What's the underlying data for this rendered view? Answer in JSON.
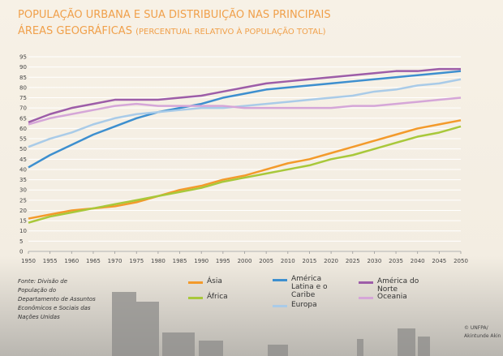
{
  "chart_data": {
    "type": "line",
    "title_lines": [
      "POPULAÇÃO URBANA E SUA DISTRIBUIÇÃO NAS PRINCIPAIS",
      "ÁREAS GEOGRÁFICAS"
    ],
    "subtitle": "(PERCENTUAL RELATIVO À POPULAÇÃO TOTAL)",
    "x": [
      1950,
      1955,
      1960,
      1965,
      1970,
      1975,
      1980,
      1985,
      1990,
      1995,
      2000,
      2005,
      2010,
      2015,
      2020,
      2025,
      2030,
      2035,
      2040,
      2045,
      2050
    ],
    "xlim": [
      1950,
      2050
    ],
    "xticks": [
      1950,
      1955,
      1960,
      1965,
      1970,
      1975,
      1980,
      1985,
      1990,
      1995,
      2000,
      2005,
      2010,
      2015,
      2020,
      2025,
      2030,
      2035,
      2040,
      2045,
      2050
    ],
    "ylim": [
      0,
      95
    ],
    "yticks": [
      0,
      5,
      10,
      15,
      20,
      25,
      30,
      35,
      40,
      45,
      50,
      55,
      60,
      65,
      70,
      75,
      80,
      85,
      90,
      95
    ],
    "grid": true,
    "series": [
      {
        "name": "Ásia",
        "color": "#f39a2b",
        "values": [
          16,
          18,
          20,
          21,
          22,
          24,
          27,
          30,
          32,
          35,
          37,
          40,
          43,
          45,
          48,
          51,
          54,
          57,
          60,
          62,
          64
        ]
      },
      {
        "name": "África",
        "color": "#a8c83a",
        "values": [
          14,
          17,
          19,
          21,
          23,
          25,
          27,
          29,
          31,
          34,
          36,
          38,
          40,
          42,
          45,
          47,
          50,
          53,
          56,
          58,
          61
        ]
      },
      {
        "name": "América Latina e o Caribe",
        "color": "#3d8fcf",
        "values": [
          41,
          47,
          52,
          57,
          61,
          65,
          68,
          70,
          72,
          75,
          77,
          79,
          80,
          81,
          82,
          83,
          84,
          85,
          86,
          87,
          88
        ]
      },
      {
        "name": "Europa",
        "color": "#a9cbe8",
        "values": [
          51,
          55,
          58,
          62,
          65,
          67,
          68,
          69,
          70,
          70,
          71,
          72,
          73,
          74,
          75,
          76,
          78,
          79,
          81,
          82,
          84
        ]
      },
      {
        "name": "América do Norte",
        "color": "#9d5da8",
        "values": [
          63,
          67,
          70,
          72,
          74,
          74,
          74,
          75,
          76,
          78,
          80,
          82,
          83,
          84,
          85,
          86,
          87,
          88,
          88,
          89,
          89
        ]
      },
      {
        "name": "Oceania",
        "color": "#d5a6d8",
        "values": [
          62,
          65,
          67,
          69,
          71,
          72,
          71,
          71,
          71,
          71,
          70,
          70,
          70,
          70,
          70,
          71,
          71,
          72,
          73,
          74,
          75
        ]
      }
    ],
    "source": "Fonte: Divisão de População do Departamento de Assuntos Econômicos e Sociais das Nações Unidas",
    "credit_lines": [
      "© UNFPA/",
      "Akintunde Akin"
    ]
  }
}
